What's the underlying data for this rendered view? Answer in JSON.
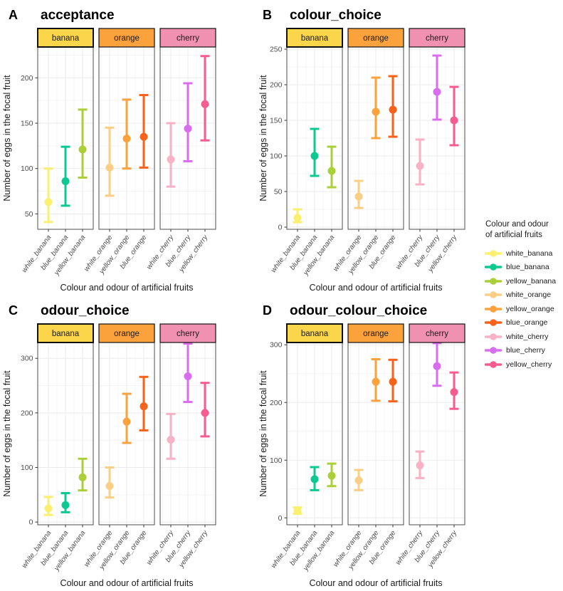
{
  "shared": {
    "ylabel": "Number of eggs in the focal fruit",
    "xlabel": "Colour and odour of artificial fruits",
    "facets": [
      {
        "label": "banana",
        "fill": "#FBD54A",
        "border_width": 2
      },
      {
        "label": "orange",
        "fill": "#FBA23D",
        "border_width": 1.2
      },
      {
        "label": "cherry",
        "fill": "#F191B2",
        "border_width": 1.2
      }
    ],
    "palette": {
      "white_banana": "#FAEF6E",
      "blue_banana": "#0CC891",
      "yellow_banana": "#AACF39",
      "white_orange": "#FBCE85",
      "yellow_orange": "#FBA23C",
      "blue_orange": "#F9621A",
      "white_cherry": "#F9B1C5",
      "blue_cherry": "#D96DF0",
      "yellow_cherry": "#F75C8E"
    },
    "grid_major_color": "#EBEBEB",
    "grid_minor_color": "#F4F4F4",
    "panel_border_color": "#4d4d4d",
    "tick_color": "#333333"
  },
  "legend": {
    "title": [
      "Colour and odour",
      "of artificial fruits"
    ],
    "items": [
      "white_banana",
      "blue_banana",
      "yellow_banana",
      "white_orange",
      "yellow_orange",
      "blue_orange",
      "white_cherry",
      "blue_cherry",
      "yellow_cherry"
    ]
  },
  "chart_data": [
    {
      "type": "scatter",
      "panel_label": "A",
      "title": "acceptance",
      "xlabel": "Colour and odour of artificial fruits",
      "ylabel": "Number of eggs in the focal fruit",
      "facets": [
        "banana",
        "orange",
        "cherry"
      ],
      "yticks": [
        50,
        100,
        150,
        200
      ],
      "ylim": [
        33,
        234
      ],
      "grid": true,
      "points": [
        {
          "category": "white_banana",
          "facet": "banana",
          "mean": 63,
          "lower": 41,
          "upper": 100
        },
        {
          "category": "blue_banana",
          "facet": "banana",
          "mean": 86,
          "lower": 59,
          "upper": 124
        },
        {
          "category": "yellow_banana",
          "facet": "banana",
          "mean": 121,
          "lower": 90,
          "upper": 165
        },
        {
          "category": "white_orange",
          "facet": "orange",
          "mean": 101,
          "lower": 70,
          "upper": 145
        },
        {
          "category": "yellow_orange",
          "facet": "orange",
          "mean": 133,
          "lower": 100,
          "upper": 176
        },
        {
          "category": "blue_orange",
          "facet": "orange",
          "mean": 135,
          "lower": 101,
          "upper": 181
        },
        {
          "category": "white_cherry",
          "facet": "cherry",
          "mean": 110,
          "lower": 80,
          "upper": 150
        },
        {
          "category": "blue_cherry",
          "facet": "cherry",
          "mean": 144,
          "lower": 108,
          "upper": 194
        },
        {
          "category": "yellow_cherry",
          "facet": "cherry",
          "mean": 171,
          "lower": 131,
          "upper": 224
        }
      ]
    },
    {
      "type": "scatter",
      "panel_label": "B",
      "title": "colour_choice",
      "xlabel": "Colour and odour of artificial fruits",
      "ylabel": "Number of eggs in the focal fruit",
      "facets": [
        "banana",
        "orange",
        "cherry"
      ],
      "yticks": [
        0,
        50,
        100,
        150,
        200,
        250
      ],
      "ylim": [
        -3,
        253
      ],
      "grid": true,
      "points": [
        {
          "category": "white_banana",
          "facet": "banana",
          "mean": 13,
          "lower": 7,
          "upper": 25
        },
        {
          "category": "blue_banana",
          "facet": "banana",
          "mean": 100,
          "lower": 72,
          "upper": 138
        },
        {
          "category": "yellow_banana",
          "facet": "banana",
          "mean": 79,
          "lower": 56,
          "upper": 113
        },
        {
          "category": "white_orange",
          "facet": "orange",
          "mean": 43,
          "lower": 27,
          "upper": 65
        },
        {
          "category": "yellow_orange",
          "facet": "orange",
          "mean": 162,
          "lower": 125,
          "upper": 210
        },
        {
          "category": "blue_orange",
          "facet": "orange",
          "mean": 165,
          "lower": 127,
          "upper": 212
        },
        {
          "category": "white_cherry",
          "facet": "cherry",
          "mean": 86,
          "lower": 60,
          "upper": 123
        },
        {
          "category": "blue_cherry",
          "facet": "cherry",
          "mean": 190,
          "lower": 151,
          "upper": 241
        },
        {
          "category": "yellow_cherry",
          "facet": "cherry",
          "mean": 150,
          "lower": 115,
          "upper": 197
        }
      ]
    },
    {
      "type": "scatter",
      "panel_label": "C",
      "title": "odour_choice",
      "xlabel": "Colour and odour of artificial fruits",
      "ylabel": "Number of eggs in the focal fruit",
      "facets": [
        "banana",
        "orange",
        "cherry"
      ],
      "yticks": [
        0,
        100,
        200,
        300
      ],
      "ylim": [
        -5,
        329
      ],
      "grid": true,
      "points": [
        {
          "category": "white_banana",
          "facet": "banana",
          "mean": 25,
          "lower": 13,
          "upper": 46
        },
        {
          "category": "blue_banana",
          "facet": "banana",
          "mean": 31,
          "lower": 18,
          "upper": 53
        },
        {
          "category": "yellow_banana",
          "facet": "banana",
          "mean": 82,
          "lower": 58,
          "upper": 116
        },
        {
          "category": "white_orange",
          "facet": "orange",
          "mean": 66,
          "lower": 45,
          "upper": 100
        },
        {
          "category": "yellow_orange",
          "facet": "orange",
          "mean": 184,
          "lower": 145,
          "upper": 235
        },
        {
          "category": "blue_orange",
          "facet": "orange",
          "mean": 212,
          "lower": 168,
          "upper": 266
        },
        {
          "category": "white_cherry",
          "facet": "cherry",
          "mean": 151,
          "lower": 116,
          "upper": 198
        },
        {
          "category": "blue_cherry",
          "facet": "cherry",
          "mean": 267,
          "lower": 220,
          "upper": 327
        },
        {
          "category": "yellow_cherry",
          "facet": "cherry",
          "mean": 200,
          "lower": 157,
          "upper": 255
        }
      ]
    },
    {
      "type": "scatter",
      "panel_label": "D",
      "title": "odour_colour_choice",
      "xlabel": "Colour and odour of artificial fruits",
      "ylabel": "Number of eggs in the focal fruit",
      "facets": [
        "banana",
        "orange",
        "cherry"
      ],
      "yticks": [
        0,
        100,
        200,
        300
      ],
      "ylim": [
        -12,
        304
      ],
      "grid": true,
      "points": [
        {
          "category": "white_banana",
          "facet": "banana",
          "mean": 12,
          "lower": 7,
          "upper": 18
        },
        {
          "category": "blue_banana",
          "facet": "banana",
          "mean": 67,
          "lower": 48,
          "upper": 88
        },
        {
          "category": "yellow_banana",
          "facet": "banana",
          "mean": 73,
          "lower": 55,
          "upper": 94
        },
        {
          "category": "white_orange",
          "facet": "orange",
          "mean": 65,
          "lower": 48,
          "upper": 83
        },
        {
          "category": "yellow_orange",
          "facet": "orange",
          "mean": 236,
          "lower": 203,
          "upper": 275
        },
        {
          "category": "blue_orange",
          "facet": "orange",
          "mean": 236,
          "lower": 202,
          "upper": 274
        },
        {
          "category": "white_cherry",
          "facet": "cherry",
          "mean": 91,
          "lower": 69,
          "upper": 115
        },
        {
          "category": "blue_cherry",
          "facet": "cherry",
          "mean": 263,
          "lower": 229,
          "upper": 303
        },
        {
          "category": "yellow_cherry",
          "facet": "cherry",
          "mean": 218,
          "lower": 189,
          "upper": 252
        }
      ]
    }
  ]
}
